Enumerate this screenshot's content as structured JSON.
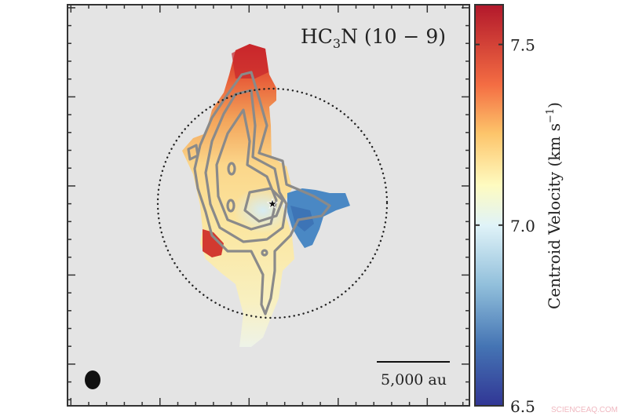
{
  "chart_data": {
    "type": "heatmap",
    "title": {
      "molecule_main": "HC",
      "molecule_sub": "3",
      "molecule_end": "N",
      "transition": "(10 − 9)"
    },
    "colorbar": {
      "label": "Centroid Velocity (km s⁻¹)",
      "label_main": "Centroid Velocity (km s",
      "label_sup": "−1",
      "label_end": ")",
      "range": [
        6.5,
        7.61
      ],
      "ticks": [
        6.5,
        7.0,
        7.5
      ],
      "tick_labels": [
        "6.5",
        "7.0",
        "7.5"
      ],
      "colormap": "RdYlBu_r",
      "colors": {
        "low": "#313695",
        "mid": "#f7f7d8",
        "high": "#b2182b"
      }
    },
    "scale_bar": {
      "label": "5,000 au"
    },
    "markers": {
      "source": "star",
      "beam": "ellipse",
      "circle": "dotted"
    },
    "contours": {
      "color": "#8a8a8a"
    },
    "background": "#e4e4e4"
  },
  "watermark": "SCIENCEAQ.COM"
}
